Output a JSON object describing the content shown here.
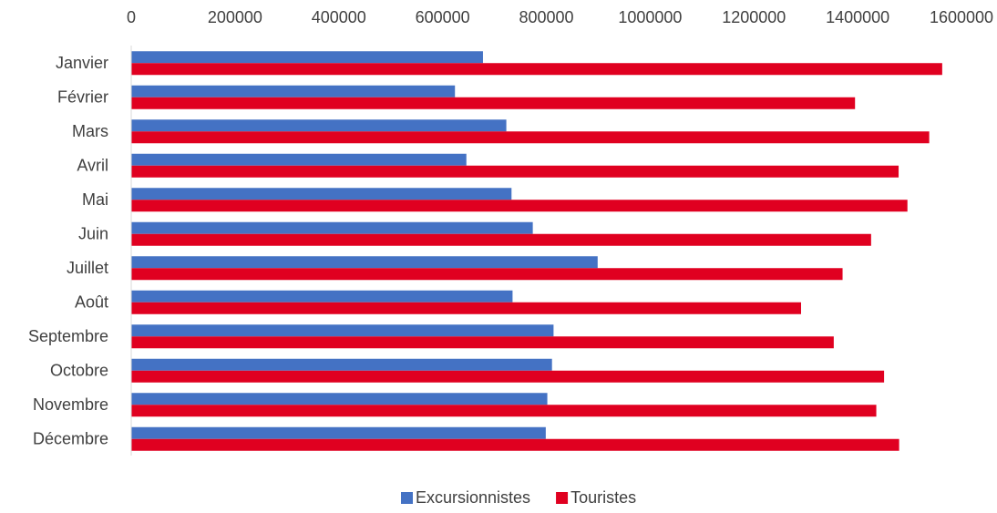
{
  "chart_data": {
    "type": "bar",
    "orientation": "horizontal",
    "title": "",
    "xlabel": "",
    "ylabel": "",
    "xlim": [
      0,
      1600000
    ],
    "x_ticks": [
      "0",
      "200000",
      "400000",
      "600000",
      "800000",
      "1000000",
      "1200000",
      "1400000",
      "1600000"
    ],
    "x_axis_position": "top",
    "grid": false,
    "legend_position": "bottom",
    "categories": [
      "Janvier",
      "Février",
      "Mars",
      "Avril",
      "Mai",
      "Juin",
      "Juillet",
      "Août",
      "Septembre",
      "Octobre",
      "Novembre",
      "Décembre"
    ],
    "series": [
      {
        "name": "Excursionnistes",
        "color": "#4472C4",
        "values": [
          677000,
          623000,
          722000,
          645000,
          732000,
          773000,
          898000,
          734000,
          813000,
          810000,
          801000,
          798000
        ]
      },
      {
        "name": "Touristes",
        "color": "#E00020",
        "values": [
          1562000,
          1394000,
          1537000,
          1478000,
          1495000,
          1425000,
          1370000,
          1290000,
          1353000,
          1450000,
          1435000,
          1479000
        ]
      }
    ]
  }
}
